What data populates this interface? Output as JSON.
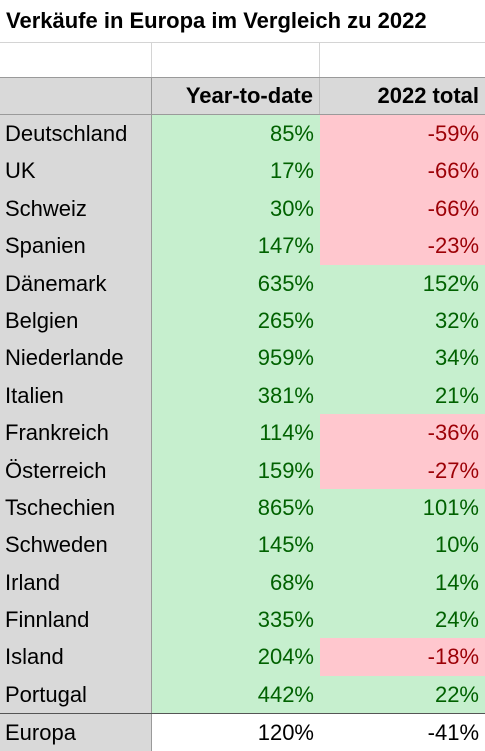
{
  "title": "Verkäufe in Europa im Vergleich zu 2022",
  "headers": {
    "country": "",
    "ytd": "Year-to-date",
    "total2022": "2022 total"
  },
  "colors": {
    "positive_bg": "#c6efce",
    "positive_text": "#006100",
    "negative_bg": "#ffc7ce",
    "negative_text": "#9c0006",
    "header_bg": "#d9d9d9"
  },
  "rows": [
    {
      "country": "Deutschland",
      "ytd": "85%",
      "total2022": "-59%"
    },
    {
      "country": "UK",
      "ytd": "17%",
      "total2022": "-66%"
    },
    {
      "country": "Schweiz",
      "ytd": "30%",
      "total2022": "-66%"
    },
    {
      "country": "Spanien",
      "ytd": "147%",
      "total2022": "-23%"
    },
    {
      "country": "Dänemark",
      "ytd": "635%",
      "total2022": "152%"
    },
    {
      "country": "Belgien",
      "ytd": "265%",
      "total2022": "32%"
    },
    {
      "country": "Niederlande",
      "ytd": "959%",
      "total2022": "34%"
    },
    {
      "country": "Italien",
      "ytd": "381%",
      "total2022": "21%"
    },
    {
      "country": "Frankreich",
      "ytd": "114%",
      "total2022": "-36%"
    },
    {
      "country": "Österreich",
      "ytd": "159%",
      "total2022": "-27%"
    },
    {
      "country": "Tschechien",
      "ytd": "865%",
      "total2022": "101%"
    },
    {
      "country": "Schweden",
      "ytd": "145%",
      "total2022": "10%"
    },
    {
      "country": "Irland",
      "ytd": "68%",
      "total2022": "14%"
    },
    {
      "country": "Finnland",
      "ytd": "335%",
      "total2022": "24%"
    },
    {
      "country": "Island",
      "ytd": "204%",
      "total2022": "-18%"
    },
    {
      "country": "Portugal",
      "ytd": "442%",
      "total2022": "22%"
    }
  ],
  "total": {
    "country": "Europa",
    "ytd": "120%",
    "total2022": "-41%"
  }
}
